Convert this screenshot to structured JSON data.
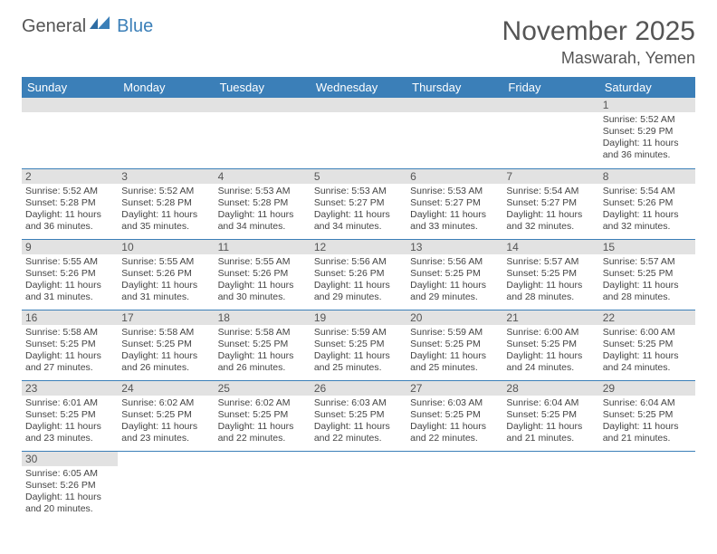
{
  "logo": {
    "general": "General",
    "blue": "Blue"
  },
  "title": "November 2025",
  "location": "Maswarah, Yemen",
  "colors": {
    "header_bg": "#3b7fb8",
    "header_text": "#ffffff",
    "daynum_bg": "#e2e2e2",
    "text": "#444444",
    "border": "#3b7fb8"
  },
  "day_headers": [
    "Sunday",
    "Monday",
    "Tuesday",
    "Wednesday",
    "Thursday",
    "Friday",
    "Saturday"
  ],
  "weeks": [
    [
      null,
      null,
      null,
      null,
      null,
      null,
      {
        "n": "1",
        "sr": "5:52 AM",
        "ss": "5:29 PM",
        "dl": "11 hours and 36 minutes."
      }
    ],
    [
      {
        "n": "2",
        "sr": "5:52 AM",
        "ss": "5:28 PM",
        "dl": "11 hours and 36 minutes."
      },
      {
        "n": "3",
        "sr": "5:52 AM",
        "ss": "5:28 PM",
        "dl": "11 hours and 35 minutes."
      },
      {
        "n": "4",
        "sr": "5:53 AM",
        "ss": "5:28 PM",
        "dl": "11 hours and 34 minutes."
      },
      {
        "n": "5",
        "sr": "5:53 AM",
        "ss": "5:27 PM",
        "dl": "11 hours and 34 minutes."
      },
      {
        "n": "6",
        "sr": "5:53 AM",
        "ss": "5:27 PM",
        "dl": "11 hours and 33 minutes."
      },
      {
        "n": "7",
        "sr": "5:54 AM",
        "ss": "5:27 PM",
        "dl": "11 hours and 32 minutes."
      },
      {
        "n": "8",
        "sr": "5:54 AM",
        "ss": "5:26 PM",
        "dl": "11 hours and 32 minutes."
      }
    ],
    [
      {
        "n": "9",
        "sr": "5:55 AM",
        "ss": "5:26 PM",
        "dl": "11 hours and 31 minutes."
      },
      {
        "n": "10",
        "sr": "5:55 AM",
        "ss": "5:26 PM",
        "dl": "11 hours and 31 minutes."
      },
      {
        "n": "11",
        "sr": "5:55 AM",
        "ss": "5:26 PM",
        "dl": "11 hours and 30 minutes."
      },
      {
        "n": "12",
        "sr": "5:56 AM",
        "ss": "5:26 PM",
        "dl": "11 hours and 29 minutes."
      },
      {
        "n": "13",
        "sr": "5:56 AM",
        "ss": "5:25 PM",
        "dl": "11 hours and 29 minutes."
      },
      {
        "n": "14",
        "sr": "5:57 AM",
        "ss": "5:25 PM",
        "dl": "11 hours and 28 minutes."
      },
      {
        "n": "15",
        "sr": "5:57 AM",
        "ss": "5:25 PM",
        "dl": "11 hours and 28 minutes."
      }
    ],
    [
      {
        "n": "16",
        "sr": "5:58 AM",
        "ss": "5:25 PM",
        "dl": "11 hours and 27 minutes."
      },
      {
        "n": "17",
        "sr": "5:58 AM",
        "ss": "5:25 PM",
        "dl": "11 hours and 26 minutes."
      },
      {
        "n": "18",
        "sr": "5:58 AM",
        "ss": "5:25 PM",
        "dl": "11 hours and 26 minutes."
      },
      {
        "n": "19",
        "sr": "5:59 AM",
        "ss": "5:25 PM",
        "dl": "11 hours and 25 minutes."
      },
      {
        "n": "20",
        "sr": "5:59 AM",
        "ss": "5:25 PM",
        "dl": "11 hours and 25 minutes."
      },
      {
        "n": "21",
        "sr": "6:00 AM",
        "ss": "5:25 PM",
        "dl": "11 hours and 24 minutes."
      },
      {
        "n": "22",
        "sr": "6:00 AM",
        "ss": "5:25 PM",
        "dl": "11 hours and 24 minutes."
      }
    ],
    [
      {
        "n": "23",
        "sr": "6:01 AM",
        "ss": "5:25 PM",
        "dl": "11 hours and 23 minutes."
      },
      {
        "n": "24",
        "sr": "6:02 AM",
        "ss": "5:25 PM",
        "dl": "11 hours and 23 minutes."
      },
      {
        "n": "25",
        "sr": "6:02 AM",
        "ss": "5:25 PM",
        "dl": "11 hours and 22 minutes."
      },
      {
        "n": "26",
        "sr": "6:03 AM",
        "ss": "5:25 PM",
        "dl": "11 hours and 22 minutes."
      },
      {
        "n": "27",
        "sr": "6:03 AM",
        "ss": "5:25 PM",
        "dl": "11 hours and 22 minutes."
      },
      {
        "n": "28",
        "sr": "6:04 AM",
        "ss": "5:25 PM",
        "dl": "11 hours and 21 minutes."
      },
      {
        "n": "29",
        "sr": "6:04 AM",
        "ss": "5:25 PM",
        "dl": "11 hours and 21 minutes."
      }
    ],
    [
      {
        "n": "30",
        "sr": "6:05 AM",
        "ss": "5:26 PM",
        "dl": "11 hours and 20 minutes."
      },
      null,
      null,
      null,
      null,
      null,
      null
    ]
  ],
  "labels": {
    "sunrise": "Sunrise:",
    "sunset": "Sunset:",
    "daylight": "Daylight:"
  }
}
